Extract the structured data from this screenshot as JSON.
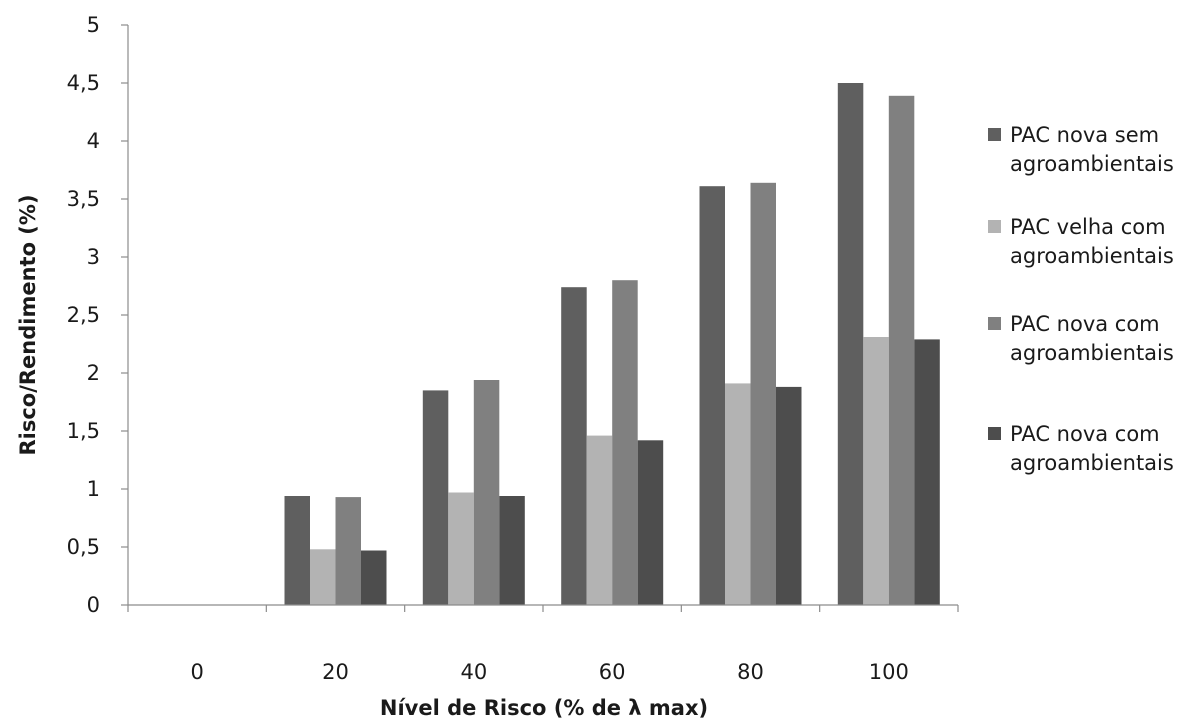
{
  "chart_data": {
    "type": "bar",
    "title": "",
    "xlabel": "Nível de Risco (% de λ max)",
    "ylabel": "Risco/Rendimento  (%)",
    "categories": [
      "0",
      "20",
      "40",
      "60",
      "80",
      "100"
    ],
    "ylim": [
      0,
      5
    ],
    "yticks": [
      "0",
      "0,5",
      "1",
      "1,5",
      "2",
      "2,5",
      "3",
      "3,5",
      "4",
      "4,5",
      "5"
    ],
    "grid": false,
    "legend_position": "right",
    "series": [
      {
        "name": "PAC nova sem agroambientais",
        "legend_lines": [
          "PAC nova sem",
          "agroambientais"
        ],
        "color": "#5f5f5f",
        "values": [
          0,
          0.94,
          1.85,
          2.74,
          3.61,
          4.5
        ]
      },
      {
        "name": "PAC velha  com agroambientais",
        "legend_lines": [
          "PAC velha  com",
          "agroambientais"
        ],
        "color": "#b3b3b3",
        "values": [
          0,
          0.48,
          0.97,
          1.46,
          1.91,
          2.31
        ]
      },
      {
        "name": "PAC nova com agroambientais",
        "legend_lines": [
          "PAC nova com",
          "agroambientais"
        ],
        "color": "#808080",
        "values": [
          0,
          0.93,
          1.94,
          2.8,
          3.64,
          4.39
        ]
      },
      {
        "name": "PAC nova com agroambientais",
        "legend_lines": [
          "PAC nova com",
          "agroambientais"
        ],
        "color": "#4d4d4d",
        "values": [
          0,
          0.47,
          0.94,
          1.42,
          1.88,
          2.29
        ]
      }
    ]
  }
}
